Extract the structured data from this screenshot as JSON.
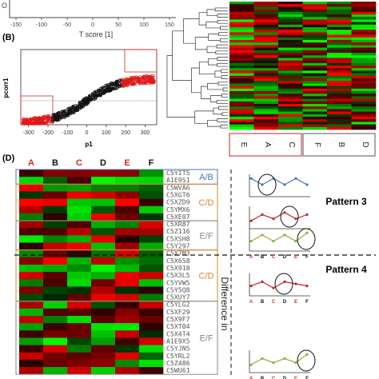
{
  "top_strip": {
    "xlabel": "T score [1]",
    "ticks": [
      "-150",
      "-100",
      "-50",
      "0",
      "50",
      "100",
      "150"
    ],
    "ylabel_fragment": "O"
  },
  "panel_b": {
    "label": "(B)",
    "scatter": {
      "xlabel": "p1",
      "ylabel": "pcorr1",
      "xticks": [
        "-300",
        "-200",
        "-100",
        "0",
        "100",
        "200",
        "300"
      ],
      "xlim": [
        -340,
        360
      ]
    },
    "heatmap_groups": [
      {
        "labels": [
          "E",
          "A",
          "C"
        ],
        "border": "#c0272d"
      },
      {
        "labels": [
          "F",
          "B",
          "D"
        ],
        "border": "#555555"
      }
    ]
  },
  "panel_d": {
    "label": "(D)",
    "columns": [
      {
        "label": "A",
        "color": "#d42a20"
      },
      {
        "label": "B",
        "color": "#111111"
      },
      {
        "label": "C",
        "color": "#d42a20"
      },
      {
        "label": "D",
        "color": "#111111"
      },
      {
        "label": "E",
        "color": "#d42a20"
      },
      {
        "label": "F",
        "color": "#111111"
      }
    ],
    "row_labels": [
      "C5YIT5",
      "A1E9S1",
      "C5WVA6",
      "C5XGT6",
      "C5XZD9",
      "C5YMX6",
      "C5XE07",
      "C5XR87",
      "C5Z116",
      "C5XSH8",
      "C5Y297",
      "C5X7M3",
      "C5X658",
      "C5X918",
      "C5X3L5",
      "C5YVW5",
      "C5Y5Q8",
      "C5XUY7",
      "C5YLG2",
      "C5XF29",
      "C5X9F7",
      "C5XT04",
      "C5X4T4",
      "A1E9X5",
      "C5YJN5",
      "C5YRL2",
      "C5Z486",
      "C5WU61"
    ],
    "groups": [
      {
        "text": "A/B",
        "color": "#4a78b8"
      },
      {
        "text": "C/D",
        "color": "#d8872b"
      },
      {
        "text": "E/F",
        "color": "#8a8a8a"
      },
      {
        "text": "C/D",
        "color": "#d8872b"
      },
      {
        "text": "E/F",
        "color": "#8a8a8a"
      }
    ],
    "side_text": "Difference in",
    "patterns": [
      {
        "title": "Pattern 3"
      },
      {
        "title": "Pattern 4"
      }
    ],
    "pattern_axis_letters": [
      {
        "letter": "A",
        "color": "#d42a20"
      },
      {
        "letter": "B",
        "color": "#111111"
      },
      {
        "letter": "C",
        "color": "#d42a20"
      },
      {
        "letter": "D",
        "color": "#111111"
      },
      {
        "letter": "E",
        "color": "#d42a20"
      },
      {
        "letter": "F",
        "color": "#111111"
      }
    ],
    "pattern_lines": [
      {
        "color": "#4a78b8",
        "values": [
          0.8,
          0.5,
          0.8,
          0.5,
          0.8,
          0.5
        ]
      },
      {
        "color": "#c0272d",
        "values": [
          0.3,
          0.6,
          0.4,
          0.7,
          0.4,
          0.6
        ]
      },
      {
        "color": "#8fb03a",
        "values": [
          0.4,
          0.7,
          0.4,
          0.7,
          0.4,
          0.8
        ]
      },
      {
        "color": "#c0272d",
        "values": [
          0.4,
          0.6,
          0.3,
          0.6,
          0.5,
          0.4
        ]
      },
      {
        "color": "#8fb03a",
        "values": [
          0.3,
          0.6,
          0.4,
          0.6,
          0.4,
          0.8
        ]
      }
    ]
  },
  "colors": {
    "heat_green": "#00c800",
    "heat_red": "#e00000",
    "heat_black": "#000000"
  }
}
